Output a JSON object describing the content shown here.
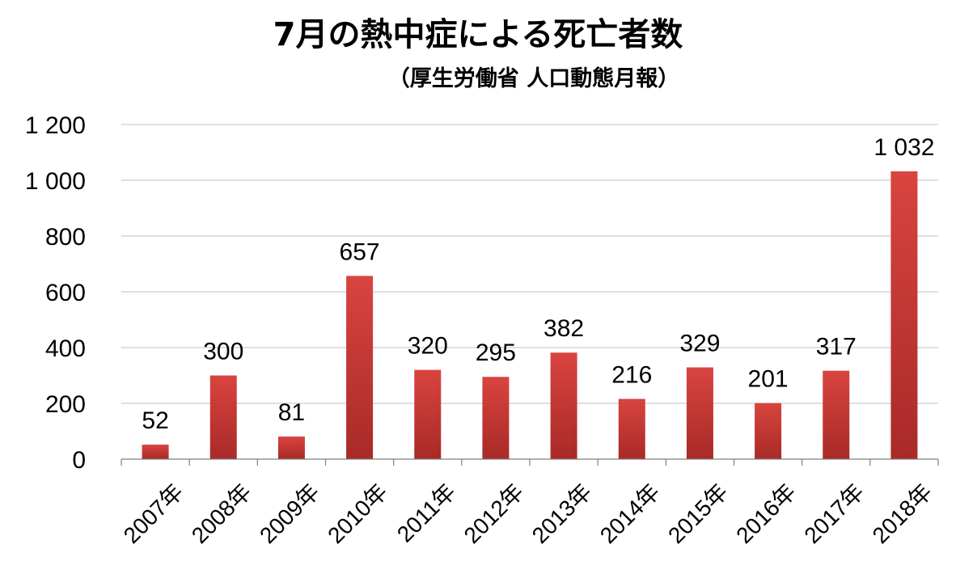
{
  "chart_data": {
    "type": "bar",
    "title": "7月の熱中症による死亡者数",
    "subtitle": "（厚生労働省 人口動態月報）",
    "categories": [
      "2007年",
      "2008年",
      "2009年",
      "2010年",
      "2011年",
      "2012年",
      "2013年",
      "2014年",
      "2015年",
      "2016年",
      "2017年",
      "2018年"
    ],
    "values": [
      52,
      300,
      81,
      657,
      320,
      295,
      382,
      216,
      329,
      201,
      317,
      1032
    ],
    "data_labels": [
      "52",
      "300",
      "81",
      "657",
      "320",
      "295",
      "382",
      "216",
      "329",
      "201",
      "317",
      "1 032"
    ],
    "ylim": [
      0,
      1200
    ],
    "yticks": [
      0,
      200,
      400,
      600,
      800,
      1000,
      1200
    ],
    "ytick_labels": [
      "0",
      "200",
      "400",
      "600",
      "800",
      "1 000",
      "1 200"
    ],
    "grid": true,
    "legend": "none",
    "bar_color_top": "#d9443f",
    "bar_color_bottom": "#a82a27"
  }
}
